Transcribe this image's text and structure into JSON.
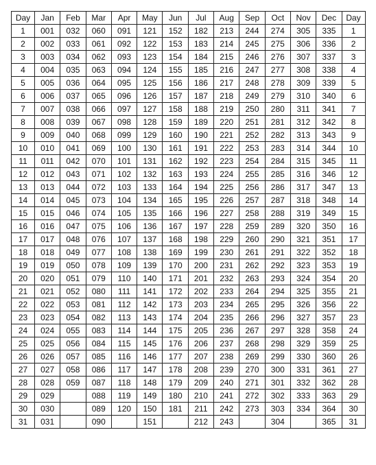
{
  "table": {
    "type": "table",
    "columns": [
      "Day",
      "Jan",
      "Feb",
      "Mar",
      "Apr",
      "May",
      "Jun",
      "Jul",
      "Aug",
      "Sep",
      "Oct",
      "Nov",
      "Dec",
      "Day"
    ],
    "rows": [
      [
        "1",
        "001",
        "032",
        "060",
        "091",
        "121",
        "152",
        "182",
        "213",
        "244",
        "274",
        "305",
        "335",
        "1"
      ],
      [
        "2",
        "002",
        "033",
        "061",
        "092",
        "122",
        "153",
        "183",
        "214",
        "245",
        "275",
        "306",
        "336",
        "2"
      ],
      [
        "3",
        "003",
        "034",
        "062",
        "093",
        "123",
        "154",
        "184",
        "215",
        "246",
        "276",
        "307",
        "337",
        "3"
      ],
      [
        "4",
        "004",
        "035",
        "063",
        "094",
        "124",
        "155",
        "185",
        "216",
        "247",
        "277",
        "308",
        "338",
        "4"
      ],
      [
        "5",
        "005",
        "036",
        "064",
        "095",
        "125",
        "156",
        "186",
        "217",
        "248",
        "278",
        "309",
        "339",
        "5"
      ],
      [
        "6",
        "006",
        "037",
        "065",
        "096",
        "126",
        "157",
        "187",
        "218",
        "249",
        "279",
        "310",
        "340",
        "6"
      ],
      [
        "7",
        "007",
        "038",
        "066",
        "097",
        "127",
        "158",
        "188",
        "219",
        "250",
        "280",
        "311",
        "341",
        "7"
      ],
      [
        "8",
        "008",
        "039",
        "067",
        "098",
        "128",
        "159",
        "189",
        "220",
        "251",
        "281",
        "312",
        "342",
        "8"
      ],
      [
        "9",
        "009",
        "040",
        "068",
        "099",
        "129",
        "160",
        "190",
        "221",
        "252",
        "282",
        "313",
        "343",
        "9"
      ],
      [
        "10",
        "010",
        "041",
        "069",
        "100",
        "130",
        "161",
        "191",
        "222",
        "253",
        "283",
        "314",
        "344",
        "10"
      ],
      [
        "11",
        "011",
        "042",
        "070",
        "101",
        "131",
        "162",
        "192",
        "223",
        "254",
        "284",
        "315",
        "345",
        "11"
      ],
      [
        "12",
        "012",
        "043",
        "071",
        "102",
        "132",
        "163",
        "193",
        "224",
        "255",
        "285",
        "316",
        "346",
        "12"
      ],
      [
        "13",
        "013",
        "044",
        "072",
        "103",
        "133",
        "164",
        "194",
        "225",
        "256",
        "286",
        "317",
        "347",
        "13"
      ],
      [
        "14",
        "014",
        "045",
        "073",
        "104",
        "134",
        "165",
        "195",
        "226",
        "257",
        "287",
        "318",
        "348",
        "14"
      ],
      [
        "15",
        "015",
        "046",
        "074",
        "105",
        "135",
        "166",
        "196",
        "227",
        "258",
        "288",
        "319",
        "349",
        "15"
      ],
      [
        "16",
        "016",
        "047",
        "075",
        "106",
        "136",
        "167",
        "197",
        "228",
        "259",
        "289",
        "320",
        "350",
        "16"
      ],
      [
        "17",
        "017",
        "048",
        "076",
        "107",
        "137",
        "168",
        "198",
        "229",
        "260",
        "290",
        "321",
        "351",
        "17"
      ],
      [
        "18",
        "018",
        "049",
        "077",
        "108",
        "138",
        "169",
        "199",
        "230",
        "261",
        "291",
        "322",
        "352",
        "18"
      ],
      [
        "19",
        "019",
        "050",
        "078",
        "109",
        "139",
        "170",
        "200",
        "231",
        "262",
        "292",
        "323",
        "353",
        "19"
      ],
      [
        "20",
        "020",
        "051",
        "079",
        "110",
        "140",
        "171",
        "201",
        "232",
        "263",
        "293",
        "324",
        "354",
        "20"
      ],
      [
        "21",
        "021",
        "052",
        "080",
        "111",
        "141",
        "172",
        "202",
        "233",
        "264",
        "294",
        "325",
        "355",
        "21"
      ],
      [
        "22",
        "022",
        "053",
        "081",
        "112",
        "142",
        "173",
        "203",
        "234",
        "265",
        "295",
        "326",
        "356",
        "22"
      ],
      [
        "23",
        "023",
        "054",
        "082",
        "113",
        "143",
        "174",
        "204",
        "235",
        "266",
        "296",
        "327",
        "357",
        "23"
      ],
      [
        "24",
        "024",
        "055",
        "083",
        "114",
        "144",
        "175",
        "205",
        "236",
        "267",
        "297",
        "328",
        "358",
        "24"
      ],
      [
        "25",
        "025",
        "056",
        "084",
        "115",
        "145",
        "176",
        "206",
        "237",
        "268",
        "298",
        "329",
        "359",
        "25"
      ],
      [
        "26",
        "026",
        "057",
        "085",
        "116",
        "146",
        "177",
        "207",
        "238",
        "269",
        "299",
        "330",
        "360",
        "26"
      ],
      [
        "27",
        "027",
        "058",
        "086",
        "117",
        "147",
        "178",
        "208",
        "239",
        "270",
        "300",
        "331",
        "361",
        "27"
      ],
      [
        "28",
        "028",
        "059",
        "087",
        "118",
        "148",
        "179",
        "209",
        "240",
        "271",
        "301",
        "332",
        "362",
        "28"
      ],
      [
        "29",
        "029",
        "",
        "088",
        "119",
        "149",
        "180",
        "210",
        "241",
        "272",
        "302",
        "333",
        "363",
        "29"
      ],
      [
        "30",
        "030",
        "",
        "089",
        "120",
        "150",
        "181",
        "211",
        "242",
        "273",
        "303",
        "334",
        "364",
        "30"
      ],
      [
        "31",
        "031",
        "",
        "090",
        "",
        "151",
        "",
        "212",
        "243",
        "",
        "304",
        "",
        "365",
        "31"
      ]
    ],
    "border_color": "#222222",
    "background_color": "#ffffff",
    "font_size": 12
  }
}
